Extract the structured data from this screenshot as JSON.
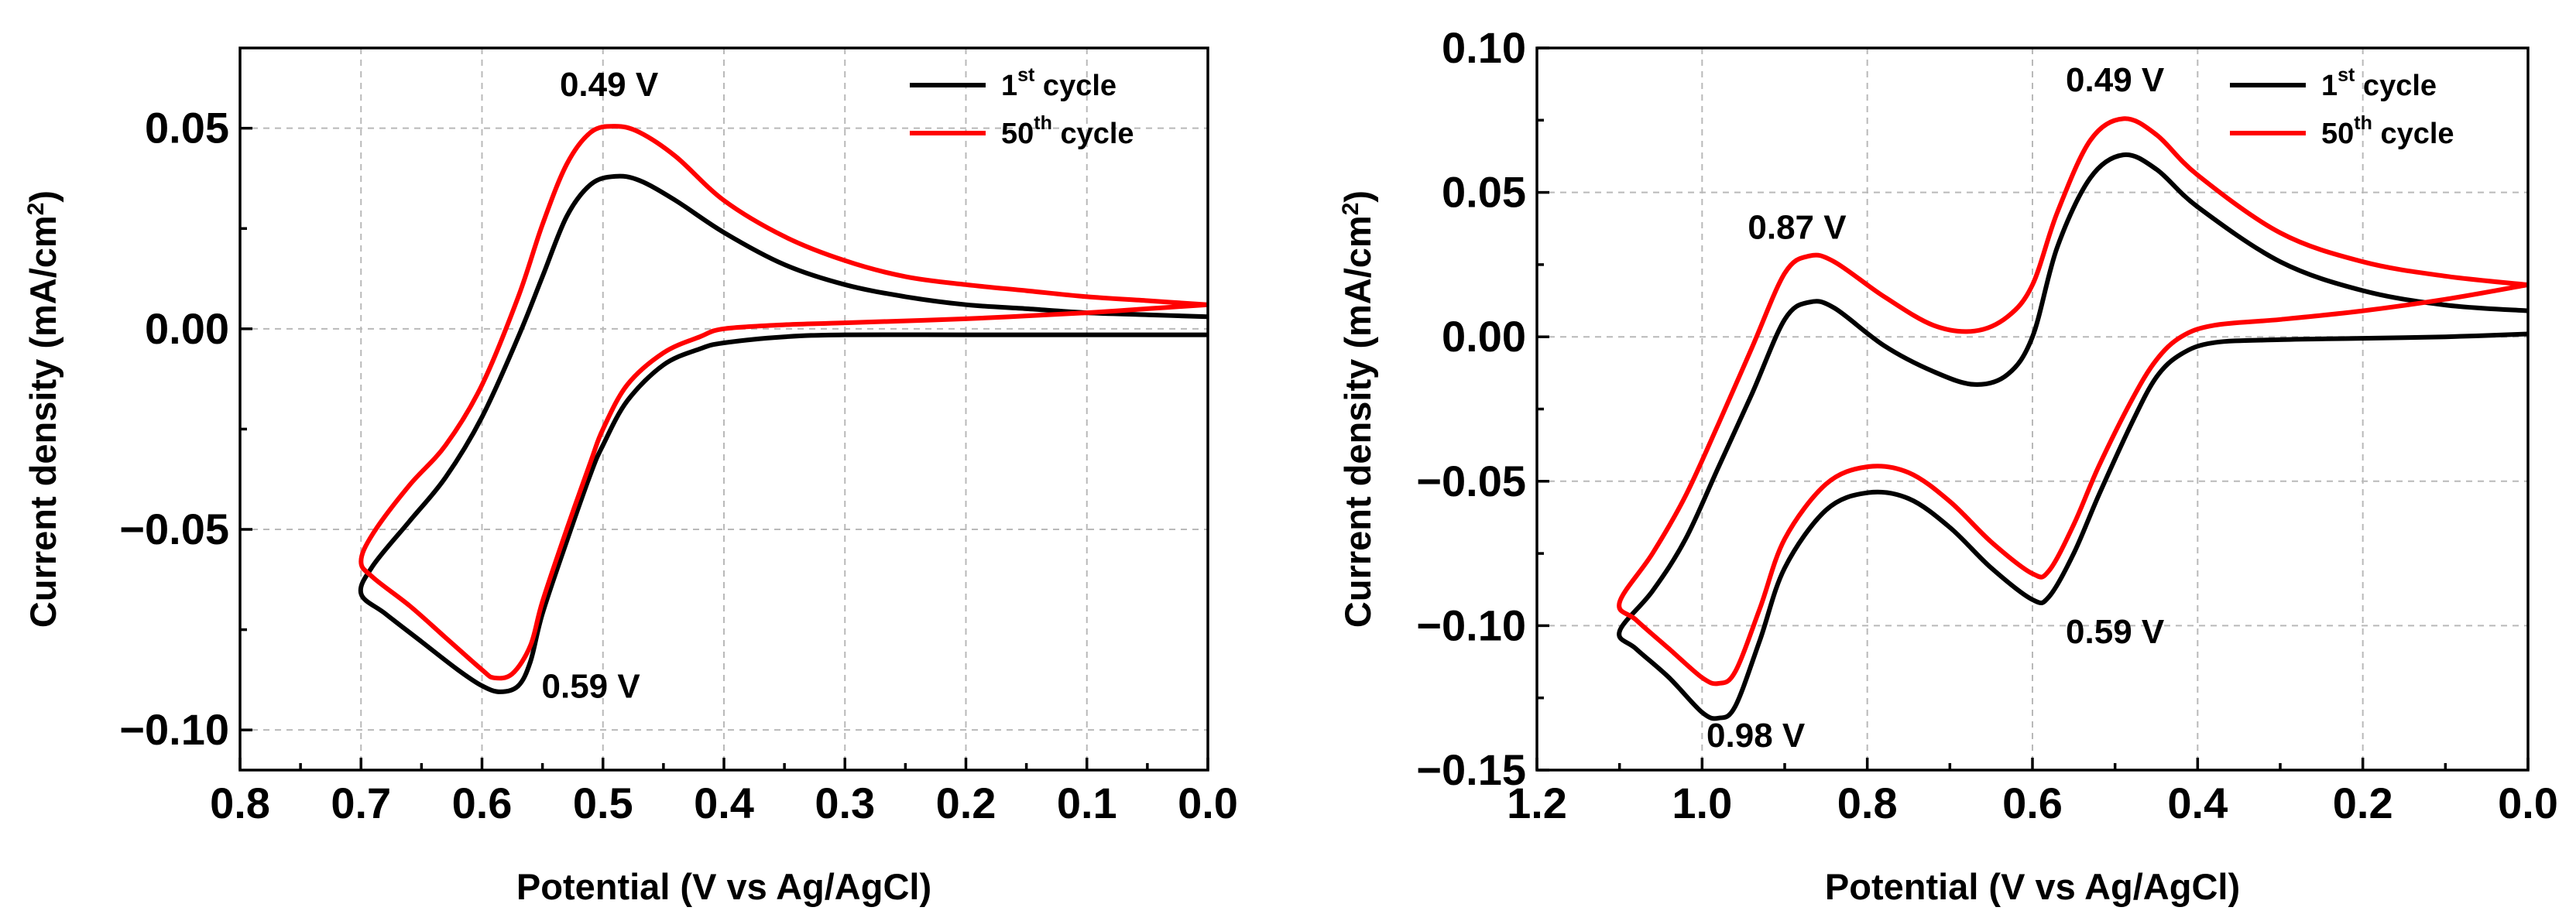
{
  "chart_data": [
    {
      "type": "line",
      "title": "",
      "xlabel": "Potential (V vs Ag/AgCl)",
      "ylabel": "Current density (mA/cm",
      "ylabel_sup": "2",
      "ylabel_close": ")",
      "xlim": [
        0.8,
        0.0
      ],
      "ylim": [
        -0.11,
        0.07
      ],
      "x_ticks": [
        0.8,
        0.7,
        0.6,
        0.5,
        0.4,
        0.3,
        0.2,
        0.1,
        0.0
      ],
      "x_tick_labels": [
        "0.8",
        "0.7",
        "0.6",
        "0.5",
        "0.4",
        "0.3",
        "0.2",
        "0.1",
        "0.0"
      ],
      "y_ticks": [
        0.05,
        0.0,
        -0.05,
        -0.1
      ],
      "y_tick_labels": [
        "0.05",
        "0.00",
        "−0.05",
        "−0.10"
      ],
      "grid": true,
      "legend_position": "top-right",
      "legend": [
        {
          "base": "1",
          "sup": "st",
          "rest": " cycle",
          "color": "#000000"
        },
        {
          "base": "50",
          "sup": "th",
          "rest": " cycle",
          "color": "#ff0000"
        }
      ],
      "annotations": [
        {
          "text": "0.49 V",
          "x": 0.495,
          "y": 0.058
        },
        {
          "text": "0.59 V",
          "x": 0.51,
          "y": -0.092
        }
      ],
      "series": [
        {
          "name": "1st cycle",
          "color": "#000000",
          "points": [
            [
              0.0,
              0.003
            ],
            [
              0.05,
              0.0035
            ],
            [
              0.1,
              0.004
            ],
            [
              0.15,
              0.005
            ],
            [
              0.2,
              0.006
            ],
            [
              0.25,
              0.008
            ],
            [
              0.3,
              0.011
            ],
            [
              0.35,
              0.016
            ],
            [
              0.4,
              0.024
            ],
            [
              0.44,
              0.032
            ],
            [
              0.47,
              0.037
            ],
            [
              0.49,
              0.038
            ],
            [
              0.51,
              0.036
            ],
            [
              0.53,
              0.028
            ],
            [
              0.55,
              0.013
            ],
            [
              0.57,
              -0.002
            ],
            [
              0.6,
              -0.022
            ],
            [
              0.63,
              -0.037
            ],
            [
              0.66,
              -0.048
            ],
            [
              0.69,
              -0.059
            ],
            [
              0.7,
              -0.066
            ],
            [
              0.68,
              -0.071
            ],
            [
              0.65,
              -0.078
            ],
            [
              0.62,
              -0.085
            ],
            [
              0.6,
              -0.089
            ],
            [
              0.585,
              -0.0905
            ],
            [
              0.57,
              -0.089
            ],
            [
              0.56,
              -0.083
            ],
            [
              0.55,
              -0.071
            ],
            [
              0.53,
              -0.053
            ],
            [
              0.51,
              -0.036
            ],
            [
              0.5,
              -0.029
            ],
            [
              0.48,
              -0.018
            ],
            [
              0.45,
              -0.009
            ],
            [
              0.42,
              -0.005
            ],
            [
              0.4,
              -0.0035
            ],
            [
              0.35,
              -0.002
            ],
            [
              0.3,
              -0.0015
            ],
            [
              0.2,
              -0.0015
            ],
            [
              0.1,
              -0.0015
            ],
            [
              0.0,
              -0.0015
            ]
          ]
        },
        {
          "name": "50th cycle",
          "color": "#ff0000",
          "points": [
            [
              0.0,
              0.006
            ],
            [
              0.05,
              0.007
            ],
            [
              0.1,
              0.008
            ],
            [
              0.15,
              0.0095
            ],
            [
              0.2,
              0.011
            ],
            [
              0.25,
              0.013
            ],
            [
              0.3,
              0.017
            ],
            [
              0.35,
              0.023
            ],
            [
              0.4,
              0.032
            ],
            [
              0.44,
              0.043
            ],
            [
              0.47,
              0.049
            ],
            [
              0.49,
              0.0505
            ],
            [
              0.51,
              0.049
            ],
            [
              0.53,
              0.041
            ],
            [
              0.55,
              0.026
            ],
            [
              0.57,
              0.008
            ],
            [
              0.6,
              -0.014
            ],
            [
              0.63,
              -0.029
            ],
            [
              0.66,
              -0.039
            ],
            [
              0.69,
              -0.051
            ],
            [
              0.7,
              -0.058
            ],
            [
              0.69,
              -0.062
            ],
            [
              0.66,
              -0.069
            ],
            [
              0.63,
              -0.077
            ],
            [
              0.6,
              -0.085
            ],
            [
              0.59,
              -0.087
            ],
            [
              0.575,
              -0.086
            ],
            [
              0.56,
              -0.079
            ],
            [
              0.55,
              -0.068
            ],
            [
              0.53,
              -0.05
            ],
            [
              0.51,
              -0.033
            ],
            [
              0.5,
              -0.025
            ],
            [
              0.48,
              -0.014
            ],
            [
              0.45,
              -0.006
            ],
            [
              0.42,
              -0.002
            ],
            [
              0.4,
              0.0
            ],
            [
              0.35,
              0.001
            ],
            [
              0.3,
              0.0015
            ],
            [
              0.2,
              0.0025
            ],
            [
              0.1,
              0.004
            ],
            [
              0.05,
              0.005
            ],
            [
              0.0,
              0.006
            ]
          ]
        }
      ]
    },
    {
      "type": "line",
      "title": "",
      "xlabel": "Potential (V vs Ag/AgCl)",
      "ylabel": "Current density (mA/cm",
      "ylabel_sup": "2",
      "ylabel_close": ")",
      "xlim": [
        1.2,
        0.0
      ],
      "ylim": [
        -0.15,
        0.1
      ],
      "x_ticks": [
        1.2,
        1.0,
        0.8,
        0.6,
        0.4,
        0.2,
        0.0
      ],
      "x_tick_labels": [
        "1.2",
        "1.0",
        "0.8",
        "0.6",
        "0.4",
        "0.2",
        "0.0"
      ],
      "y_ticks": [
        0.1,
        0.05,
        0.0,
        -0.05,
        -0.1,
        -0.15
      ],
      "y_tick_labels": [
        "0.10",
        "0.05",
        "0.00",
        "−0.05",
        "−0.10",
        "−0.15"
      ],
      "grid": true,
      "legend_position": "top-right",
      "legend": [
        {
          "base": "1",
          "sup": "st",
          "rest": " cycle",
          "color": "#000000"
        },
        {
          "base": "50",
          "sup": "th",
          "rest": " cycle",
          "color": "#ff0000"
        }
      ],
      "annotations": [
        {
          "text": "0.49 V",
          "x": 0.5,
          "y": 0.085
        },
        {
          "text": "0.87 V",
          "x": 0.885,
          "y": 0.034
        },
        {
          "text": "0.59 V",
          "x": 0.5,
          "y": -0.106
        },
        {
          "text": "0.98 V",
          "x": 0.935,
          "y": -0.142
        }
      ],
      "series": [
        {
          "name": "1st cycle",
          "color": "#000000",
          "points": [
            [
              0.0,
              0.009
            ],
            [
              0.1,
              0.011
            ],
            [
              0.2,
              0.016
            ],
            [
              0.3,
              0.026
            ],
            [
              0.4,
              0.045
            ],
            [
              0.45,
              0.058
            ],
            [
              0.49,
              0.063
            ],
            [
              0.53,
              0.055
            ],
            [
              0.57,
              0.031
            ],
            [
              0.6,
              0.0
            ],
            [
              0.63,
              -0.013
            ],
            [
              0.67,
              -0.0165
            ],
            [
              0.72,
              -0.012
            ],
            [
              0.78,
              -0.003
            ],
            [
              0.84,
              0.01
            ],
            [
              0.87,
              0.012
            ],
            [
              0.9,
              0.006
            ],
            [
              0.94,
              -0.02
            ],
            [
              0.98,
              -0.045
            ],
            [
              1.02,
              -0.07
            ],
            [
              1.06,
              -0.088
            ],
            [
              1.1,
              -0.102
            ],
            [
              1.08,
              -0.108
            ],
            [
              1.04,
              -0.118
            ],
            [
              1.0,
              -0.13
            ],
            [
              0.98,
              -0.132
            ],
            [
              0.96,
              -0.128
            ],
            [
              0.93,
              -0.105
            ],
            [
              0.9,
              -0.08
            ],
            [
              0.85,
              -0.06
            ],
            [
              0.8,
              -0.054
            ],
            [
              0.75,
              -0.056
            ],
            [
              0.7,
              -0.066
            ],
            [
              0.65,
              -0.08
            ],
            [
              0.6,
              -0.091
            ],
            [
              0.58,
              -0.09
            ],
            [
              0.55,
              -0.075
            ],
            [
              0.52,
              -0.055
            ],
            [
              0.48,
              -0.03
            ],
            [
              0.45,
              -0.014
            ],
            [
              0.42,
              -0.006
            ],
            [
              0.38,
              -0.002
            ],
            [
              0.3,
              -0.001
            ],
            [
              0.2,
              -0.0005
            ],
            [
              0.1,
              0.0
            ],
            [
              0.0,
              0.001
            ]
          ]
        },
        {
          "name": "50th cycle",
          "color": "#ff0000",
          "points": [
            [
              0.0,
              0.018
            ],
            [
              0.1,
              0.021
            ],
            [
              0.2,
              0.026
            ],
            [
              0.3,
              0.036
            ],
            [
              0.4,
              0.056
            ],
            [
              0.45,
              0.07
            ],
            [
              0.49,
              0.0755
            ],
            [
              0.53,
              0.068
            ],
            [
              0.57,
              0.043
            ],
            [
              0.6,
              0.018
            ],
            [
              0.63,
              0.007
            ],
            [
              0.67,
              0.002
            ],
            [
              0.72,
              0.004
            ],
            [
              0.78,
              0.014
            ],
            [
              0.84,
              0.026
            ],
            [
              0.87,
              0.028
            ],
            [
              0.9,
              0.022
            ],
            [
              0.94,
              -0.004
            ],
            [
              0.98,
              -0.03
            ],
            [
              1.02,
              -0.055
            ],
            [
              1.06,
              -0.075
            ],
            [
              1.1,
              -0.092
            ],
            [
              1.08,
              -0.098
            ],
            [
              1.04,
              -0.108
            ],
            [
              1.0,
              -0.118
            ],
            [
              0.98,
              -0.12
            ],
            [
              0.96,
              -0.116
            ],
            [
              0.93,
              -0.094
            ],
            [
              0.9,
              -0.07
            ],
            [
              0.85,
              -0.051
            ],
            [
              0.8,
              -0.045
            ],
            [
              0.75,
              -0.047
            ],
            [
              0.7,
              -0.057
            ],
            [
              0.65,
              -0.071
            ],
            [
              0.6,
              -0.082
            ],
            [
              0.58,
              -0.081
            ],
            [
              0.55,
              -0.065
            ],
            [
              0.52,
              -0.045
            ],
            [
              0.48,
              -0.022
            ],
            [
              0.45,
              -0.008
            ],
            [
              0.42,
              0.0
            ],
            [
              0.38,
              0.004
            ],
            [
              0.3,
              0.006
            ],
            [
              0.2,
              0.009
            ],
            [
              0.1,
              0.013
            ],
            [
              0.0,
              0.018
            ]
          ]
        }
      ]
    }
  ]
}
